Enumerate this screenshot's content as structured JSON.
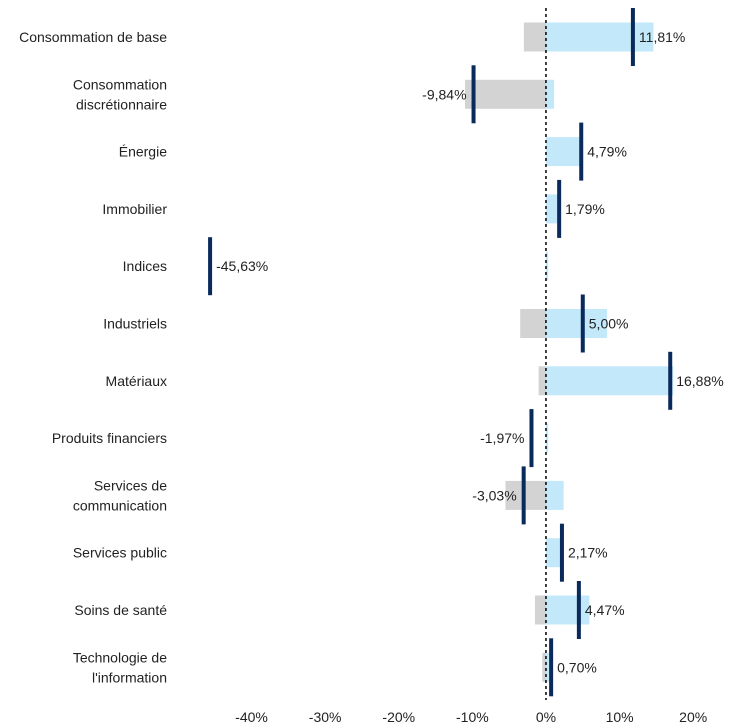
{
  "chart_data": {
    "type": "bar",
    "orientation": "horizontal",
    "categories": [
      [
        "Consommation de base"
      ],
      [
        "Consommation",
        "discrétionnaire"
      ],
      [
        "Énergie"
      ],
      [
        "Immobilier"
      ],
      [
        "Indices"
      ],
      [
        "Industriels"
      ],
      [
        "Matériaux"
      ],
      [
        "Produits financiers"
      ],
      [
        "Services de",
        "communication"
      ],
      [
        "Services public"
      ],
      [
        "Soins de santé"
      ],
      [
        "Technologie de",
        "l'information"
      ]
    ],
    "series": [
      {
        "values": [
          -3.0,
          -11.0,
          0,
          0,
          0,
          -3.5,
          -1.0,
          0,
          -5.5,
          0,
          -1.5,
          -0.5
        ]
      },
      {
        "values": [
          14.6,
          1.1,
          5.0,
          2.0,
          0.3,
          8.3,
          17.3,
          0.3,
          2.4,
          2.3,
          5.9,
          0.4
        ]
      }
    ],
    "markers": [
      11.81,
      -9.84,
      4.79,
      1.79,
      -45.63,
      5.0,
      16.88,
      -1.97,
      -3.03,
      2.17,
      4.47,
      0.7
    ],
    "marker_labels": [
      "11,81%",
      "-9,84%",
      "4,79%",
      "1,79%",
      "-45,63%",
      "5,00%",
      "16,88%",
      "-1,97%",
      "-3,03%",
      "2,17%",
      "4,47%",
      "0,70%"
    ],
    "xticks": [
      -40,
      -30,
      -20,
      -10,
      0,
      10,
      20
    ],
    "xtick_labels": [
      "-40%",
      "-30%",
      "-20%",
      "-10%",
      "0%",
      "10%",
      "20%"
    ],
    "xlim": [
      -47,
      25
    ],
    "grid": false,
    "zero_line": "dashed",
    "colors": {
      "negative_bar": "#d3d3d3",
      "positive_bar": "#c2e8f9",
      "marker": "#0a2a5c",
      "zero_line": "#000000"
    }
  }
}
